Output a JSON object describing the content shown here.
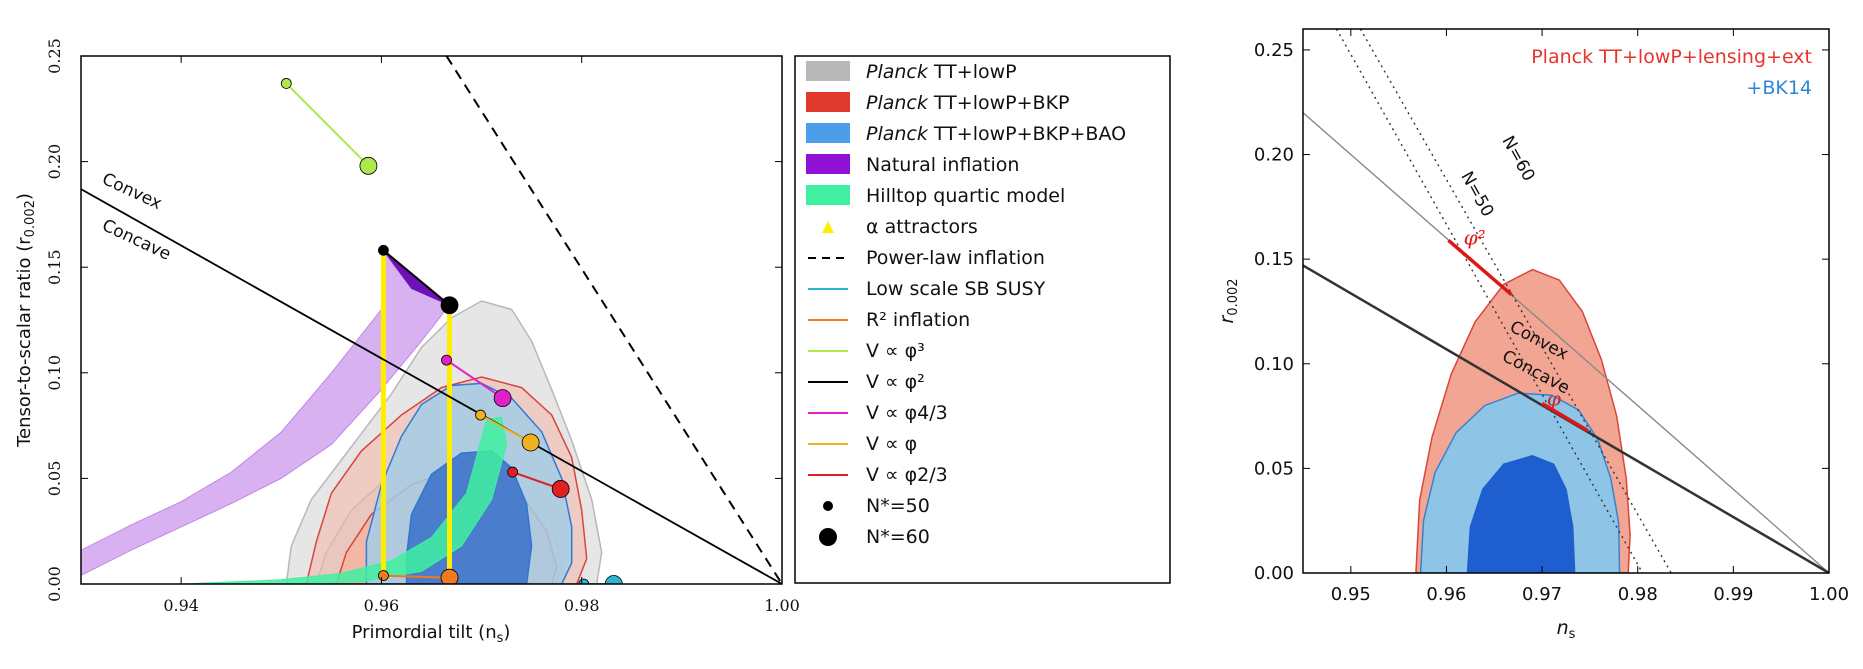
{
  "chart_data": [
    {
      "type": "contour",
      "xlabel": "Primordial tilt (n",
      "xlabel_sub": "s",
      "xlabel_end": ")",
      "ylabel": "Tensor-to-scalar ratio (r",
      "ylabel_sub": "0.002",
      "ylabel_end": ")",
      "xlim": [
        0.93,
        1.0
      ],
      "ylim": [
        0.0,
        0.25
      ],
      "xticks": [
        0.94,
        0.96,
        0.98,
        1.0
      ],
      "xtick_labels": [
        "0.94",
        "0.96",
        "0.98",
        "1.00"
      ],
      "yticks": [
        0.0,
        0.05,
        0.1,
        0.15,
        0.2,
        0.25
      ],
      "ytick_labels": [
        "0.00",
        "0.05",
        "0.10",
        "0.15",
        "0.20",
        "0.25"
      ],
      "annotations": [
        {
          "text": "Convex",
          "x": 0.932,
          "y": 0.19,
          "rotate": 25
        },
        {
          "text": "Concave",
          "x": 0.932,
          "y": 0.168,
          "rotate": 25
        }
      ],
      "contours": [
        {
          "name": "Planck TT+lowP",
          "color": "#d9d9d9",
          "edge": "#b8b8b8",
          "alpha": 0.65,
          "outer": [
            [
              0.9505,
              0
            ],
            [
              0.951,
              0.018
            ],
            [
              0.953,
              0.04
            ],
            [
              0.957,
              0.065
            ],
            [
              0.961,
              0.09
            ],
            [
              0.964,
              0.112
            ],
            [
              0.967,
              0.126
            ],
            [
              0.97,
              0.134
            ],
            [
              0.973,
              0.13
            ],
            [
              0.975,
              0.115
            ],
            [
              0.977,
              0.092
            ],
            [
              0.979,
              0.068
            ],
            [
              0.981,
              0.04
            ],
            [
              0.982,
              0.015
            ],
            [
              0.9815,
              0
            ]
          ],
          "inner": [
            [
              0.9535,
              0
            ],
            [
              0.9545,
              0.015
            ],
            [
              0.957,
              0.035
            ],
            [
              0.961,
              0.052
            ],
            [
              0.965,
              0.063
            ],
            [
              0.969,
              0.066
            ],
            [
              0.972,
              0.061
            ],
            [
              0.975,
              0.048
            ],
            [
              0.977,
              0.028
            ],
            [
              0.978,
              0.01
            ],
            [
              0.9775,
              0
            ]
          ]
        },
        {
          "name": "Planck TT+lowP+BKP",
          "color": "#f4b5a5",
          "edge": "#d9453a",
          "alpha": 0.55,
          "outer": [
            [
              0.9525,
              0
            ],
            [
              0.9535,
              0.02
            ],
            [
              0.955,
              0.043
            ],
            [
              0.958,
              0.063
            ],
            [
              0.962,
              0.08
            ],
            [
              0.966,
              0.093
            ],
            [
              0.97,
              0.098
            ],
            [
              0.974,
              0.093
            ],
            [
              0.977,
              0.08
            ],
            [
              0.979,
              0.06
            ],
            [
              0.98,
              0.035
            ],
            [
              0.9805,
              0.012
            ],
            [
              0.9795,
              0
            ]
          ],
          "inner": [
            [
              0.9555,
              0
            ],
            [
              0.9565,
              0.015
            ],
            [
              0.959,
              0.033
            ],
            [
              0.963,
              0.047
            ],
            [
              0.967,
              0.054
            ],
            [
              0.971,
              0.052
            ],
            [
              0.974,
              0.042
            ],
            [
              0.9765,
              0.025
            ],
            [
              0.9775,
              0.008
            ],
            [
              0.977,
              0
            ]
          ]
        },
        {
          "name": "Planck TT+lowP+BKP+BAO",
          "color": "#a4cce6",
          "edge": "#2f7bd6",
          "alpha": 0.85,
          "outer": [
            [
              0.9585,
              0
            ],
            [
              0.9585,
              0.02
            ],
            [
              0.96,
              0.047
            ],
            [
              0.962,
              0.07
            ],
            [
              0.964,
              0.085
            ],
            [
              0.967,
              0.094
            ],
            [
              0.97,
              0.095
            ],
            [
              0.973,
              0.088
            ],
            [
              0.976,
              0.072
            ],
            [
              0.978,
              0.05
            ],
            [
              0.979,
              0.027
            ],
            [
              0.979,
              0.01
            ],
            [
              0.978,
              0
            ]
          ],
          "inner": [
            [
              0.9625,
              0
            ],
            [
              0.9625,
              0.013
            ],
            [
              0.963,
              0.033
            ],
            [
              0.965,
              0.052
            ],
            [
              0.968,
              0.062
            ],
            [
              0.971,
              0.063
            ],
            [
              0.973,
              0.055
            ],
            [
              0.9745,
              0.038
            ],
            [
              0.975,
              0.018
            ],
            [
              0.9745,
              0
            ]
          ]
        }
      ],
      "natural_inflation": {
        "name": "Natural inflation",
        "color": "#8e1fd6",
        "polygon": [
          [
            0.93,
            0.016
          ],
          [
            0.935,
            0.028
          ],
          [
            0.94,
            0.039
          ],
          [
            0.945,
            0.053
          ],
          [
            0.95,
            0.072
          ],
          [
            0.955,
            0.1
          ],
          [
            0.96,
            0.13
          ],
          [
            0.9602,
            0.158
          ],
          [
            0.9668,
            0.132
          ],
          [
            0.964,
            0.115
          ],
          [
            0.96,
            0.092
          ],
          [
            0.955,
            0.066
          ],
          [
            0.95,
            0.05
          ],
          [
            0.945,
            0.038
          ],
          [
            0.94,
            0.027
          ],
          [
            0.935,
            0.016
          ],
          [
            0.93,
            0.004
          ]
        ]
      },
      "hilltop": {
        "name": "Hilltop quartic model",
        "color": "#3ff0a0",
        "polygon": [
          [
            0.94,
            0
          ],
          [
            0.95,
            0.002
          ],
          [
            0.956,
            0.005
          ],
          [
            0.961,
            0.011
          ],
          [
            0.965,
            0.022
          ],
          [
            0.9685,
            0.043
          ],
          [
            0.9705,
            0.078
          ],
          [
            0.972,
            0.079
          ],
          [
            0.9725,
            0.066
          ],
          [
            0.971,
            0.04
          ],
          [
            0.968,
            0.018
          ],
          [
            0.964,
            0.006
          ],
          [
            0.958,
            0.001
          ],
          [
            0.95,
            0
          ]
        ]
      },
      "attractors": {
        "name": "α attractors",
        "color": "#ffee00",
        "lines": [
          [
            [
              0.9602,
              0.158
            ],
            [
              0.9602,
              0.004
            ]
          ],
          [
            [
              0.9668,
              0.132
            ],
            [
              0.9668,
              0.004
            ]
          ]
        ]
      },
      "power_law": {
        "name": "Power-law inflation",
        "points": [
          [
            0.9665,
            0.25
          ],
          [
            1.0,
            0.0
          ]
        ]
      },
      "convex_line": {
        "name": "V ∝ φ²",
        "points": [
          [
            0.93,
            0.187
          ],
          [
            1.0,
            0.0
          ]
        ]
      },
      "models": [
        {
          "name": "V ∝ φ³",
          "color": "#aee84e",
          "n50": [
            0.9505,
            0.237
          ],
          "n60": [
            0.9587,
            0.198
          ]
        },
        {
          "name": "V ∝ φ²",
          "color": "#000000",
          "n50": [
            0.9602,
            0.158
          ],
          "n60": [
            0.9668,
            0.132
          ]
        },
        {
          "name": "V ∝ φ^{4/3}",
          "color": "#e020c8",
          "n50": [
            0.9665,
            0.106
          ],
          "n60": [
            0.9721,
            0.088
          ]
        },
        {
          "name": "V ∝ φ",
          "color": "#f0b020",
          "n50": [
            0.9699,
            0.08
          ],
          "n60": [
            0.9749,
            0.067
          ]
        },
        {
          "name": "V ∝ φ^{2/3}",
          "color": "#e02020",
          "n50": [
            0.9731,
            0.053
          ],
          "n60": [
            0.9779,
            0.045
          ]
        },
        {
          "name": "R² inflation",
          "color": "#f07a20",
          "n50": [
            0.9602,
            0.004
          ],
          "n60": [
            0.9668,
            0.003
          ]
        },
        {
          "name": "Low scale SB SUSY",
          "color": "#30b4d4",
          "n50": [
            0.9802,
            0.0
          ],
          "n60": [
            0.9832,
            0.0
          ]
        }
      ]
    },
    {
      "type": "contour",
      "title_red": "Planck TT+lowP+lensing+ext",
      "title_blue": "+BK14",
      "xlabel": "n",
      "xlabel_sub": "s",
      "ylabel": "r",
      "ylabel_sub": "0.002",
      "xlim": [
        0.945,
        1.0
      ],
      "ylim": [
        0.0,
        0.26
      ],
      "xticks": [
        0.95,
        0.96,
        0.97,
        0.98,
        0.99,
        1.0
      ],
      "xtick_labels": [
        "0.95",
        "0.96",
        "0.97",
        "0.98",
        "0.99",
        "1.00"
      ],
      "yticks": [
        0.0,
        0.05,
        0.1,
        0.15,
        0.2,
        0.25
      ],
      "ytick_labels": [
        "0.00",
        "0.05",
        "0.10",
        "0.15",
        "0.20",
        "0.25"
      ],
      "annotations": [
        {
          "text": "Convex",
          "x": 0.9665,
          "y": 0.116,
          "rotate": 28
        },
        {
          "text": "Concave",
          "x": 0.9657,
          "y": 0.102,
          "rotate": 28
        },
        {
          "text": "N=50",
          "x": 0.9615,
          "y": 0.19,
          "rotate": 61
        },
        {
          "text": "N=60",
          "x": 0.9658,
          "y": 0.207,
          "rotate": 61
        },
        {
          "text": "φ²",
          "x": 0.9618,
          "y": 0.157
        },
        {
          "text": "φ",
          "x": 0.9705,
          "y": 0.08
        }
      ],
      "contours": [
        {
          "name": "Planck TT+lowP+lensing+ext",
          "color": "#f3a593",
          "edge": "#d9453a",
          "outer": [
            [
              0.9568,
              0
            ],
            [
              0.9572,
              0.035
            ],
            [
              0.9585,
              0.065
            ],
            [
              0.9605,
              0.095
            ],
            [
              0.963,
              0.12
            ],
            [
              0.966,
              0.138
            ],
            [
              0.969,
              0.145
            ],
            [
              0.9718,
              0.14
            ],
            [
              0.9742,
              0.125
            ],
            [
              0.9762,
              0.102
            ],
            [
              0.9778,
              0.075
            ],
            [
              0.9788,
              0.045
            ],
            [
              0.9792,
              0.018
            ],
            [
              0.979,
              0
            ]
          ]
        },
        {
          "name": "+BK14 outer",
          "color": "#8ec5e6",
          "edge": "#3a82d0",
          "outer": [
            [
              0.9573,
              0
            ],
            [
              0.9576,
              0.025
            ],
            [
              0.9588,
              0.048
            ],
            [
              0.961,
              0.067
            ],
            [
              0.964,
              0.08
            ],
            [
              0.9675,
              0.086
            ],
            [
              0.971,
              0.085
            ],
            [
              0.9738,
              0.078
            ],
            [
              0.9758,
              0.064
            ],
            [
              0.9772,
              0.045
            ],
            [
              0.978,
              0.024
            ],
            [
              0.9781,
              0
            ]
          ]
        },
        {
          "name": "+BK14 inner",
          "color": "#1f5ecf",
          "edge": "#1f5ecf",
          "outer": [
            [
              0.9622,
              0
            ],
            [
              0.9625,
              0.022
            ],
            [
              0.9638,
              0.04
            ],
            [
              0.966,
              0.052
            ],
            [
              0.969,
              0.056
            ],
            [
              0.9712,
              0.052
            ],
            [
              0.9725,
              0.04
            ],
            [
              0.9732,
              0.022
            ],
            [
              0.9734,
              0
            ]
          ]
        }
      ],
      "lines": [
        {
          "name": "convex-grey",
          "color": "#8a8a8a",
          "points": [
            [
              0.945,
              0.22
            ],
            [
              1.0,
              0.0
            ]
          ]
        },
        {
          "name": "phi2-black",
          "color": "#333333",
          "points": [
            [
              0.945,
              0.147
            ],
            [
              1.0,
              0.0
            ]
          ]
        },
        {
          "name": "N=50",
          "color": "#333333",
          "dotted": true,
          "points": [
            [
              0.9485,
              0.26
            ],
            [
              0.9805,
              0.0
            ]
          ]
        },
        {
          "name": "N=60",
          "color": "#333333",
          "dotted": true,
          "points": [
            [
              0.951,
              0.26
            ],
            [
              0.9835,
              0.0
            ]
          ]
        },
        {
          "name": "phi2-red",
          "color": "#e01515",
          "points": [
            [
              0.9602,
              0.159
            ],
            [
              0.9668,
              0.133
            ]
          ]
        },
        {
          "name": "phi-red",
          "color": "#e01515",
          "points": [
            [
              0.97,
              0.081
            ],
            [
              0.9748,
              0.068
            ]
          ]
        }
      ]
    }
  ],
  "legend": {
    "items": [
      {
        "kind": "patch",
        "color": "#b8b8b8",
        "italic": "Planck",
        "label": " TT+lowP"
      },
      {
        "kind": "patch",
        "color": "#e03a2e",
        "italic": "Planck",
        "label": " TT+lowP+BKP"
      },
      {
        "kind": "patch",
        "color": "#4c9eea",
        "italic": "Planck",
        "label": " TT+lowP+BKP+BAO"
      },
      {
        "kind": "patch",
        "color": "#9010d6",
        "italic": "",
        "label": "Natural inflation"
      },
      {
        "kind": "patch",
        "color": "#40f0a0",
        "italic": "",
        "label": "Hilltop quartic model"
      },
      {
        "kind": "triangle",
        "color": "#ffee00",
        "italic": "",
        "label": "α attractors"
      },
      {
        "kind": "dash",
        "color": "#000000",
        "italic": "",
        "label": "Power-law inflation"
      },
      {
        "kind": "line",
        "color": "#30b4d4",
        "italic": "",
        "label": "Low scale SB SUSY"
      },
      {
        "kind": "line",
        "color": "#f07a20",
        "italic": "",
        "label": "R² inflation"
      },
      {
        "kind": "line",
        "color": "#aee84e",
        "italic": "",
        "label": "V ∝ φ³"
      },
      {
        "kind": "line",
        "color": "#000000",
        "italic": "",
        "label": "V ∝ φ²"
      },
      {
        "kind": "line",
        "color": "#e020c8",
        "italic": "",
        "label": "V ∝ φ4/3"
      },
      {
        "kind": "line",
        "color": "#f0b020",
        "italic": "",
        "label": "V ∝ φ"
      },
      {
        "kind": "line",
        "color": "#e02020",
        "italic": "",
        "label": "V ∝ φ2/3"
      },
      {
        "kind": "dot-small",
        "color": "#000000",
        "italic": "",
        "label": "N*=50"
      },
      {
        "kind": "dot-large",
        "color": "#000000",
        "italic": "",
        "label": "N*=60"
      }
    ]
  }
}
